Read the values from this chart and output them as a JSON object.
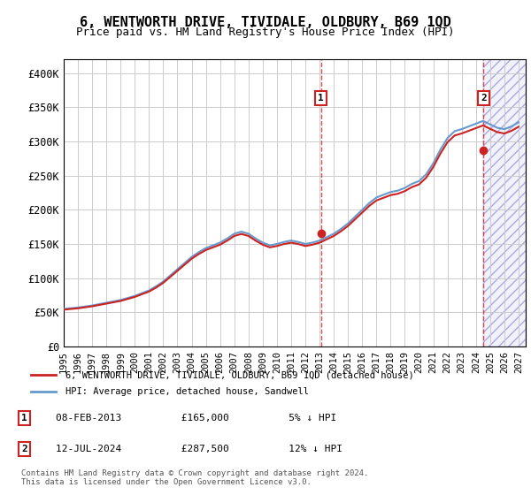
{
  "title": "6, WENTWORTH DRIVE, TIVIDALE, OLDBURY, B69 1QD",
  "subtitle": "Price paid vs. HM Land Registry's House Price Index (HPI)",
  "ylim": [
    0,
    420000
  ],
  "yticks": [
    0,
    50000,
    100000,
    150000,
    200000,
    250000,
    300000,
    350000,
    400000
  ],
  "ytick_labels": [
    "£0",
    "£50K",
    "£100K",
    "£150K",
    "£200K",
    "£250K",
    "£300K",
    "£350K",
    "£400K"
  ],
  "xlim_start": 1995.0,
  "xlim_end": 2027.5,
  "xticks": [
    1995,
    1996,
    1997,
    1998,
    1999,
    2000,
    2001,
    2002,
    2003,
    2004,
    2005,
    2006,
    2007,
    2008,
    2009,
    2010,
    2011,
    2012,
    2013,
    2014,
    2015,
    2016,
    2017,
    2018,
    2019,
    2020,
    2021,
    2022,
    2023,
    2024,
    2025,
    2026,
    2027
  ],
  "hpi_color": "#6699cc",
  "price_color": "#cc2222",
  "marker1_price": 165000,
  "marker1_x": 2013.1,
  "marker2_price": 287500,
  "marker2_x": 2024.54,
  "legend_line1": "6, WENTWORTH DRIVE, TIVIDALE, OLDBURY, B69 1QD (detached house)",
  "legend_line2": "HPI: Average price, detached house, Sandwell",
  "footnote": "Contains HM Land Registry data © Crown copyright and database right 2024.\nThis data is licensed under the Open Government Licence v3.0.",
  "background_color": "#ffffff",
  "grid_color": "#cccccc",
  "shade_start": 2024.54
}
